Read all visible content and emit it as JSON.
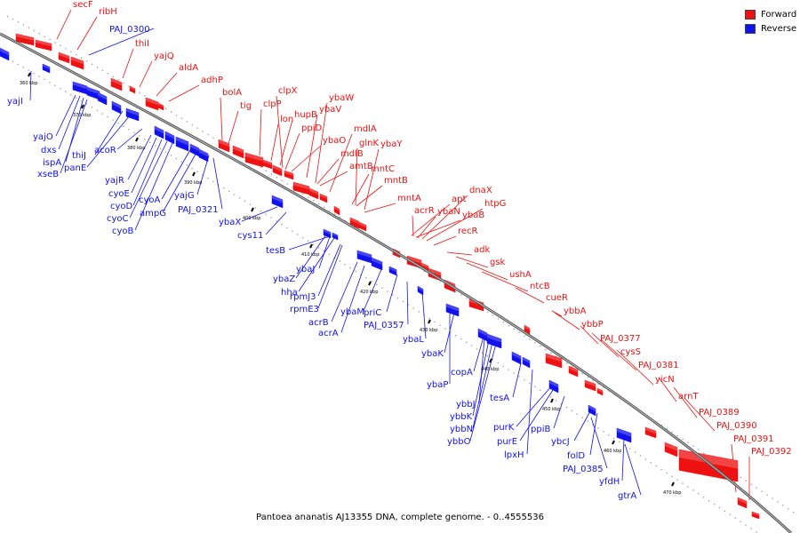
{
  "title": "Pantoea ananatis AJ13355 DNA, complete genome. - 0..4555536",
  "legend": {
    "forward_label": "Forward",
    "reverse_label": "Reverse",
    "forward_color": "#ee1111",
    "reverse_color": "#1111ee"
  },
  "tick_labels": [
    "360 kbp",
    "370 kbp",
    "380 kbp",
    "390 kbp",
    "400 kbp",
    "410 kbp",
    "420 kbp",
    "430 kbp",
    "440 kbp",
    "450 kbp",
    "460 kbp",
    "470 kbp"
  ],
  "forward_genes": [
    "secF",
    "ribH",
    "thiI",
    "yajQ",
    "aldA",
    "adhP",
    "bolA",
    "tig",
    "clpX",
    "clpP",
    "lon",
    "hupB",
    "ybaW",
    "ybaV",
    "ppiD",
    "mdlA",
    "ybaO",
    "glnK",
    "ybaY",
    "mdlB",
    "amtB",
    "mntC",
    "mntB",
    "mntA",
    "acrR",
    "apt",
    "ybaN",
    "dnaX",
    "htpG",
    "ybaB",
    "recR",
    "adk",
    "gsk",
    "ushA",
    "ntcB",
    "cueR",
    "ybbA",
    "ybbP",
    "PAJ_0377",
    "cysS",
    "PAJ_0381",
    "yicN",
    "arnT",
    "PAJ_0389",
    "PAJ_0390",
    "PAJ_0391",
    "PAJ_0392"
  ],
  "reverse_genes": [
    "PAJ_0300",
    "yajI",
    "yajO",
    "dxs",
    "ispA",
    "xseB",
    "thiJ",
    "panE",
    "acoR",
    "yajR",
    "cyoE",
    "cyoD",
    "cyoC",
    "cyoB",
    "cyoA",
    "ampG",
    "yajG",
    "PAJ_0321",
    "ybaX",
    "cys11",
    "tesB",
    "ybaJ",
    "ybaZ",
    "hha",
    "rpmJ3",
    "rpmE3",
    "acrB",
    "ybaM",
    "acrA",
    "priC",
    "PAJ_0357",
    "ybaL",
    "ybaK",
    "ybaP",
    "copA",
    "ybbJ",
    "tesA",
    "ybbK",
    "ybbN",
    "ybbO",
    "purK",
    "purE",
    "ppiB",
    "lpxH",
    "ybcJ",
    "folD",
    "PAJ_0385",
    "yfdH",
    "gtrA"
  ]
}
